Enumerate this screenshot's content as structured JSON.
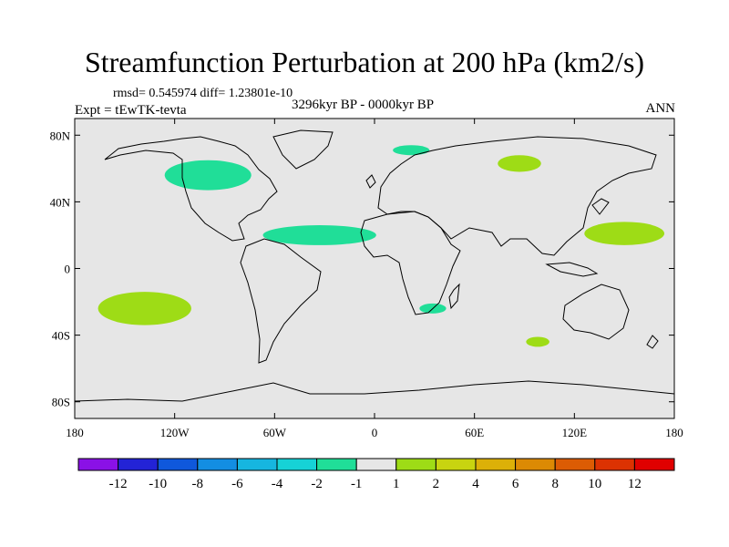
{
  "title": "Streamfunction Perturbation at 200 hPa (km2/s)",
  "stats_line": "rmsd= 0.545974 diff= 1.23801e-10",
  "experiment": "Expt = tEwTK-tevta",
  "period": "3296kyr BP - 0000kyr BP",
  "season": "ANN",
  "map": {
    "projection": "cylindrical equidistant",
    "lon_range": [
      -180,
      180
    ],
    "lat_range": [
      -90,
      90
    ],
    "x_ticks": [
      {
        "lon": -180,
        "label": "180"
      },
      {
        "lon": -120,
        "label": "120W"
      },
      {
        "lon": -60,
        "label": "60W"
      },
      {
        "lon": 0,
        "label": "0"
      },
      {
        "lon": 60,
        "label": "60E"
      },
      {
        "lon": 120,
        "label": "120E"
      },
      {
        "lon": 180,
        "label": "180"
      }
    ],
    "y_ticks": [
      {
        "lat": 80,
        "label": "80N"
      },
      {
        "lat": 40,
        "label": "40N"
      },
      {
        "lat": 0,
        "label": "0"
      },
      {
        "lat": -40,
        "label": "40S"
      },
      {
        "lat": -80,
        "label": "80S"
      }
    ],
    "background_color": "#e6e6e6",
    "anomalies": [
      {
        "name": "north-america",
        "lon": -100,
        "lat": 56,
        "rlon": 26,
        "rlat": 9,
        "color": "#20de98"
      },
      {
        "name": "tropical-atlantic",
        "lon": -33,
        "lat": 20,
        "rlon": 34,
        "rlat": 6,
        "color": "#20de98"
      },
      {
        "name": "scandinavia",
        "lon": 22,
        "lat": 71,
        "rlon": 11,
        "rlat": 3,
        "color": "#20de98"
      },
      {
        "name": "southern-africa",
        "lon": 35,
        "lat": -24,
        "rlon": 8,
        "rlat": 3,
        "color": "#20de98"
      },
      {
        "name": "central-asia",
        "lon": 87,
        "lat": 63,
        "rlon": 13,
        "rlat": 5,
        "color": "#9edc16"
      },
      {
        "name": "northwest-pacific",
        "lon": 150,
        "lat": 21,
        "rlon": 24,
        "rlat": 7,
        "color": "#9edc16"
      },
      {
        "name": "south-pacific",
        "lon": -138,
        "lat": -24,
        "rlon": 28,
        "rlat": 10,
        "color": "#9edc16"
      },
      {
        "name": "south-indian-ocean",
        "lon": 98,
        "lat": -44,
        "rlon": 7,
        "rlat": 3,
        "color": "#9edc16"
      }
    ]
  },
  "colorbar": {
    "colors": [
      "#8a11e6",
      "#2323d6",
      "#0f58dc",
      "#138ee2",
      "#16b6e0",
      "#16d2d6",
      "#20de98",
      "#e6e6e6",
      "#9edc16",
      "#c8d410",
      "#dcb008",
      "#dc8a04",
      "#dc5c04",
      "#dc3202",
      "#e00000"
    ],
    "labels": [
      "-12",
      "-10",
      "-8",
      "-6",
      "-4",
      "-2",
      "-1",
      "1",
      "2",
      "4",
      "6",
      "8",
      "10",
      "12"
    ]
  }
}
